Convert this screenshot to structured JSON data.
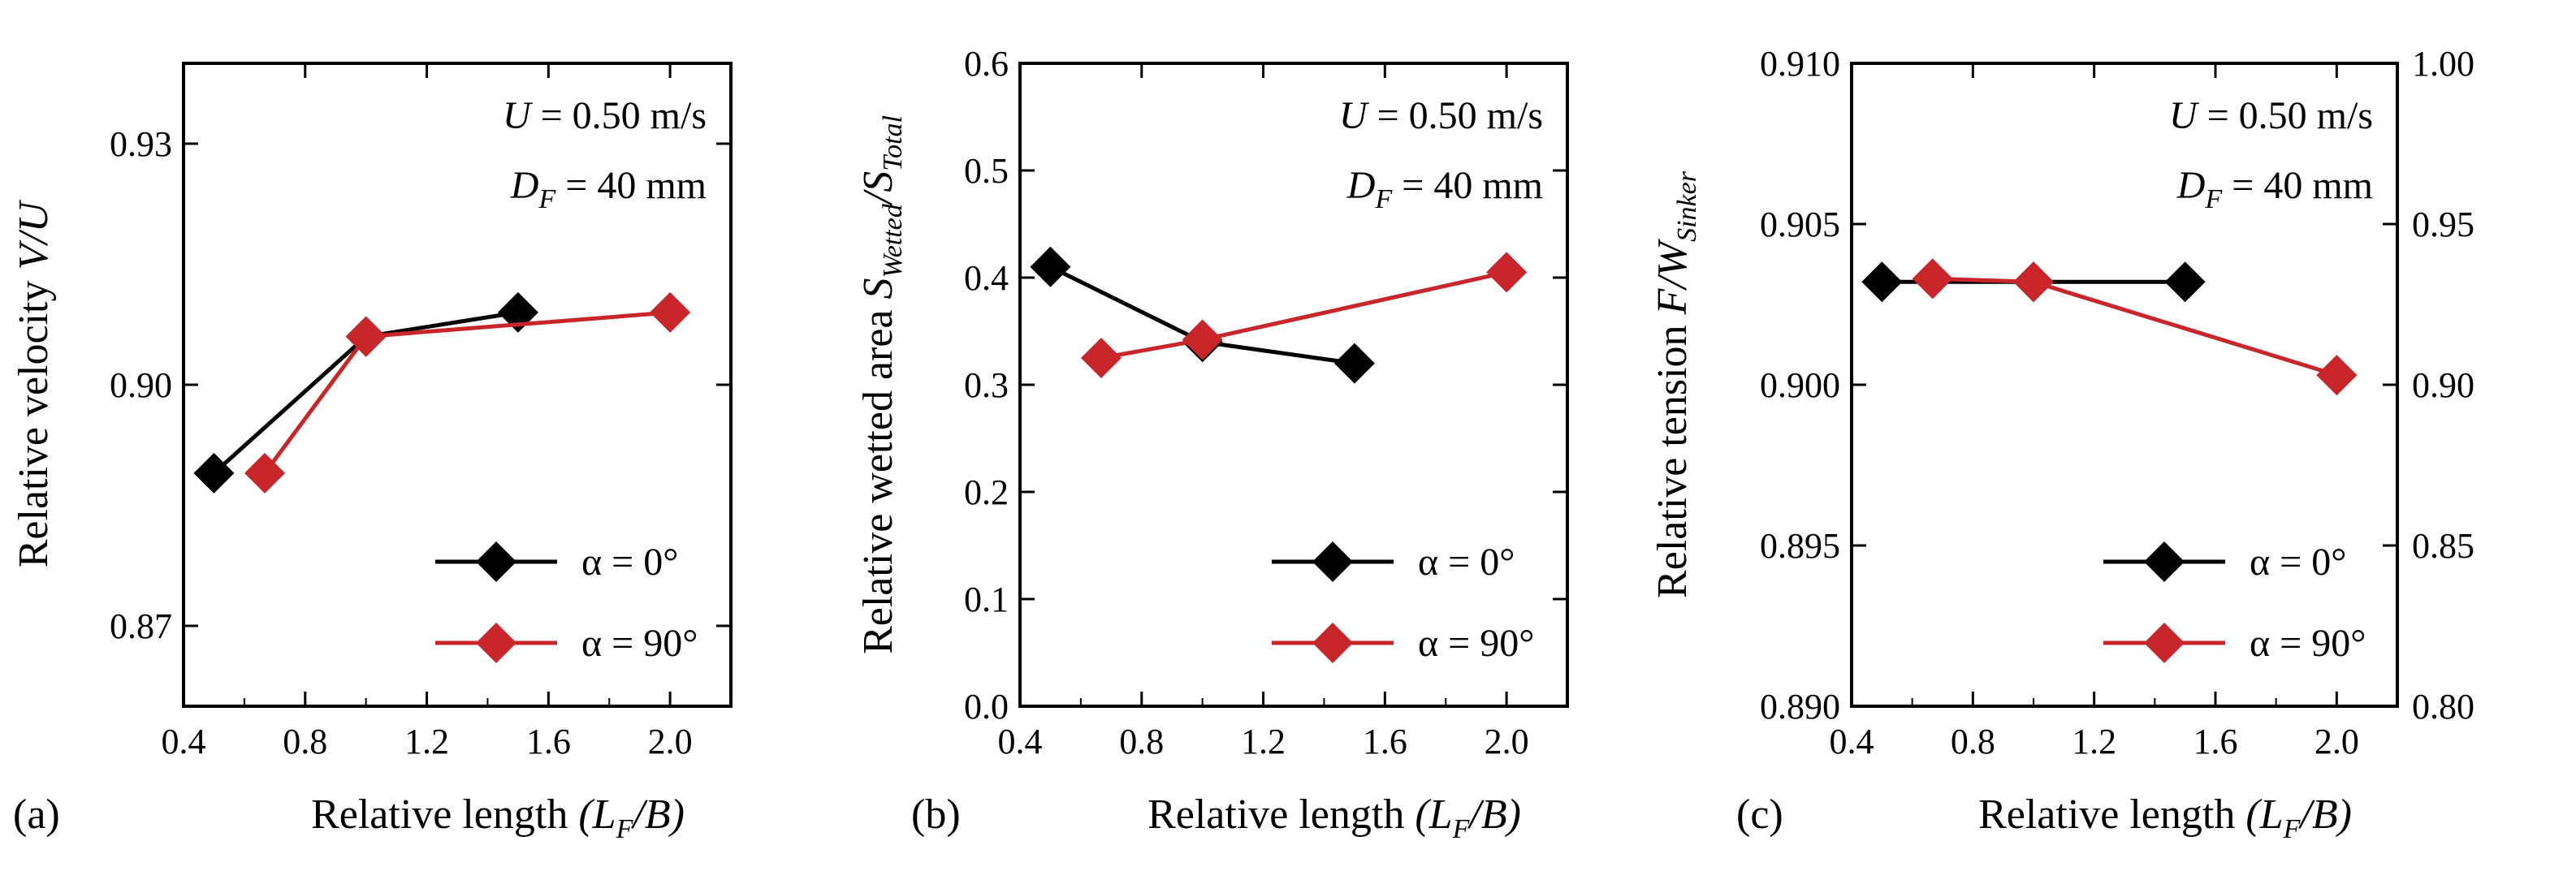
{
  "colors": {
    "black": "#000000",
    "red": "#c8262b",
    "frame": "#000000"
  },
  "chart_data": [
    {
      "type": "line",
      "panel": "(a)",
      "xlabel": "Relative length",
      "xlabel_sym": "(L",
      "xlabel_sub": "F",
      "xlabel_tail": "/B)",
      "ylabel": "Relative velocity",
      "ylabel_sym": "V/U",
      "xlim": [
        0.4,
        2.2
      ],
      "ylim": [
        0.86,
        0.94
      ],
      "xticks": [
        0.4,
        0.8,
        1.2,
        1.6,
        2.0
      ],
      "xtick_labels": [
        "0.4",
        "0.8",
        "1.2",
        "1.6",
        "2.0"
      ],
      "yticks": [
        0.87,
        0.9,
        0.93
      ],
      "ytick_labels": [
        "0.87",
        "0.90",
        "0.93"
      ],
      "annotation": [
        {
          "sym": "U",
          "sub": "",
          "text": " = 0.50 m/s"
        },
        {
          "sym": "D",
          "sub": "F",
          "text": " = 40 mm"
        }
      ],
      "series": [
        {
          "name": "α = 0°",
          "color": "#000000",
          "x": [
            0.5,
            1.0,
            1.5
          ],
          "y": [
            0.889,
            0.906,
            0.909
          ]
        },
        {
          "name": "α = 90°",
          "color": "#c8262b",
          "x": [
            0.667,
            1.0,
            2.0
          ],
          "y": [
            0.889,
            0.906,
            0.909
          ]
        }
      ]
    },
    {
      "type": "line",
      "panel": "(b)",
      "xlabel": "Relative length",
      "xlabel_sym": "(L",
      "xlabel_sub": "F",
      "xlabel_tail": "/B)",
      "ylabel": "Relative wetted area",
      "ylabel_sym": "S",
      "ylabel_sub": "Wetted",
      "ylabel_mid": "/S",
      "ylabel_sub2": "Total",
      "xlim": [
        0.4,
        2.2
      ],
      "ylim": [
        0.0,
        0.6
      ],
      "xticks": [
        0.4,
        0.8,
        1.2,
        1.6,
        2.0
      ],
      "xtick_labels": [
        "0.4",
        "0.8",
        "1.2",
        "1.6",
        "2.0"
      ],
      "yticks": [
        0.0,
        0.1,
        0.2,
        0.3,
        0.4,
        0.5,
        0.6
      ],
      "ytick_labels": [
        "0.0",
        "0.1",
        "0.2",
        "0.3",
        "0.4",
        "0.5",
        "0.6"
      ],
      "annotation": [
        {
          "sym": "U",
          "sub": "",
          "text": " = 0.50 m/s"
        },
        {
          "sym": "D",
          "sub": "F",
          "text": " = 40 mm"
        }
      ],
      "series": [
        {
          "name": "α = 0°",
          "color": "#000000",
          "x": [
            0.5,
            1.0,
            1.5
          ],
          "y": [
            0.41,
            0.34,
            0.32
          ]
        },
        {
          "name": "α = 90°",
          "color": "#c8262b",
          "x": [
            0.667,
            1.0,
            2.0
          ],
          "y": [
            0.325,
            0.342,
            0.405
          ]
        }
      ]
    },
    {
      "type": "line",
      "panel": "(c)",
      "xlabel": "Relative length",
      "xlabel_sym": "(L",
      "xlabel_sub": "F",
      "xlabel_tail": "/B)",
      "ylabel": "Relative tension",
      "ylabel_sym": "F/W",
      "ylabel_sub": "Sinker",
      "xlim": [
        0.4,
        2.2
      ],
      "ylim": [
        0.89,
        0.91
      ],
      "xticks": [
        0.4,
        0.8,
        1.2,
        1.6,
        2.0
      ],
      "xtick_labels": [
        "0.4",
        "0.8",
        "1.2",
        "1.6",
        "2.0"
      ],
      "yticks": [
        0.89,
        0.895,
        0.9,
        0.905,
        0.91
      ],
      "ytick_labels": [
        "0.890",
        "0.895",
        "0.900",
        "0.905",
        "0.910"
      ],
      "y2lim": [
        0.8,
        1.0
      ],
      "y2ticks": [
        0.8,
        0.85,
        0.9,
        0.95,
        1.0
      ],
      "y2tick_labels": [
        "0.80",
        "0.85",
        "0.90",
        "0.95",
        "1.00"
      ],
      "annotation": [
        {
          "sym": "U",
          "sub": "",
          "text": " = 0.50 m/s"
        },
        {
          "sym": "D",
          "sub": "F",
          "text": " = 40 mm"
        }
      ],
      "series": [
        {
          "name": "α = 0°",
          "color": "#000000",
          "axis": "left",
          "x": [
            0.5,
            1.0,
            1.5
          ],
          "y": [
            0.9032,
            0.9032,
            0.9032
          ]
        },
        {
          "name": "α = 90°",
          "color": "#c8262b",
          "axis": "right",
          "x": [
            0.667,
            1.0,
            2.0
          ],
          "y": [
            0.933,
            0.932,
            0.903
          ]
        }
      ]
    }
  ]
}
